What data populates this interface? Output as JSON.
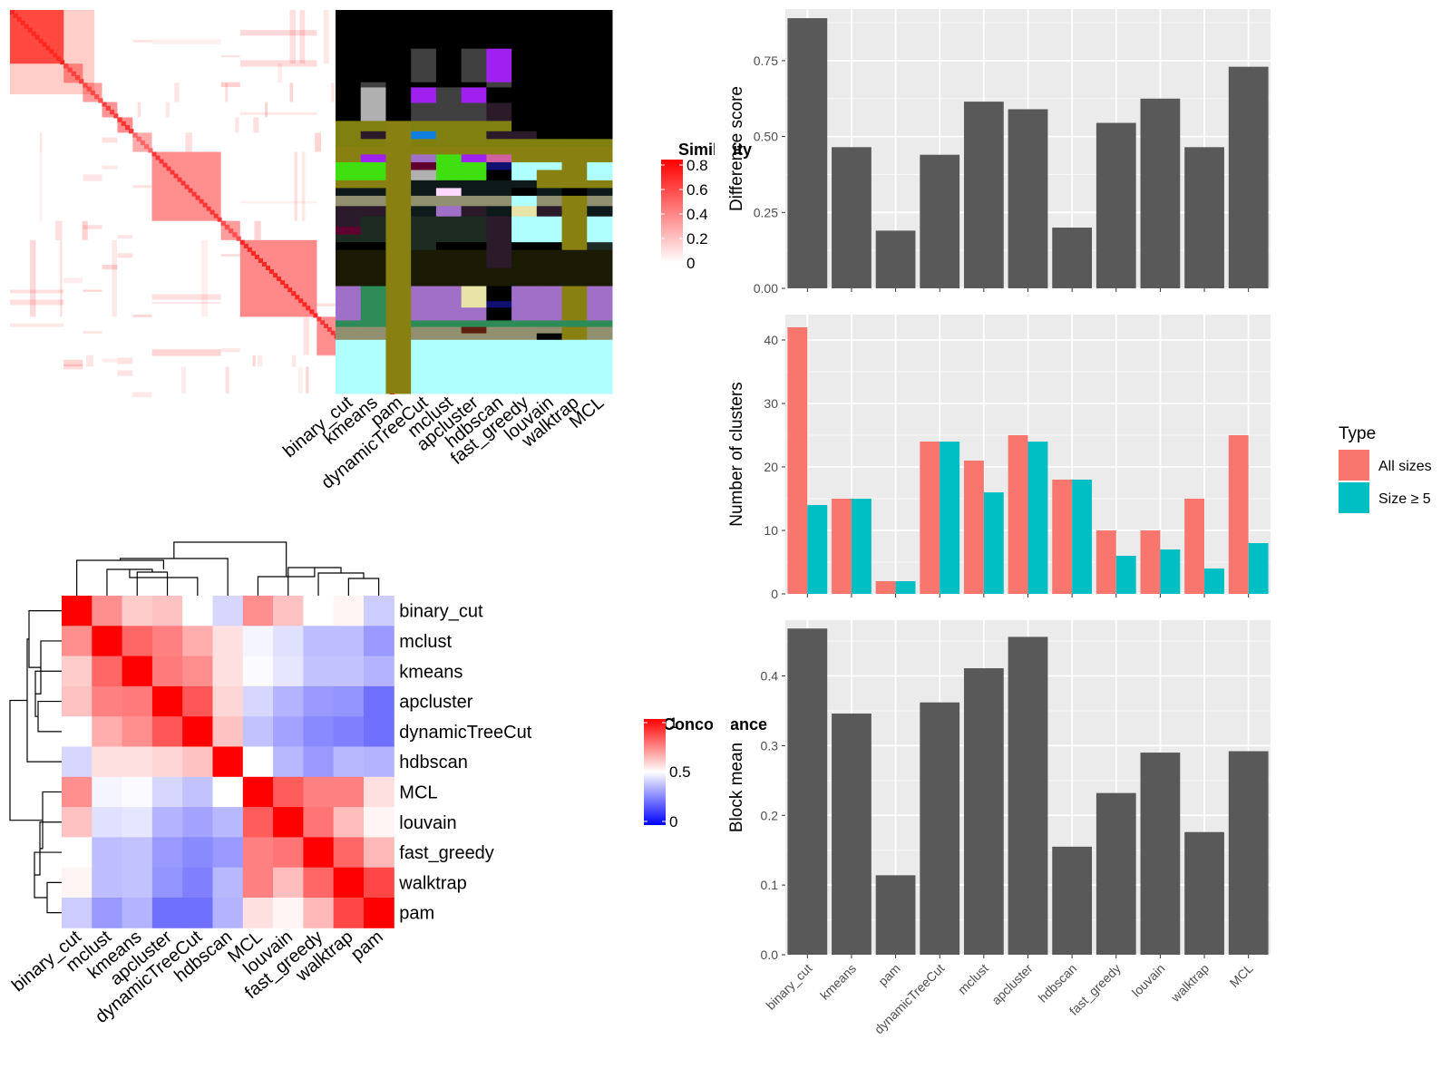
{
  "chart_data": [
    {
      "type": "heatmap",
      "panel": "similarity-matrix",
      "legend": {
        "title": "Similarity",
        "ticks": [
          "0",
          "0.2",
          "0.4",
          "0.6",
          "0.8"
        ],
        "colors": [
          "#ffffff",
          "#ff0000"
        ]
      },
      "diagonal_blocks": [
        {
          "start": 0.0,
          "end": 0.14,
          "strength": 0.85
        },
        {
          "start": 0.14,
          "end": 0.19,
          "strength": 0.75
        },
        {
          "start": 0.19,
          "end": 0.24,
          "strength": 0.7
        },
        {
          "start": 0.24,
          "end": 0.28,
          "strength": 0.75
        },
        {
          "start": 0.28,
          "end": 0.32,
          "strength": 0.8
        },
        {
          "start": 0.32,
          "end": 0.37,
          "strength": 0.6
        },
        {
          "start": 0.37,
          "end": 0.55,
          "strength": 0.8
        },
        {
          "start": 0.55,
          "end": 0.6,
          "strength": 0.7
        },
        {
          "start": 0.6,
          "end": 0.8,
          "strength": 0.85
        },
        {
          "start": 0.8,
          "end": 0.9,
          "strength": 0.8
        },
        {
          "start": 0.9,
          "end": 0.93,
          "strength": 0.8
        },
        {
          "start": 0.93,
          "end": 1.0,
          "strength": 1.0
        }
      ]
    },
    {
      "type": "heatmap",
      "panel": "cluster-assignments",
      "methods": [
        "binary_cut",
        "kmeans",
        "pam",
        "dynamicTreeCut",
        "mclust",
        "apcluster",
        "hdbscan",
        "fast_greedy",
        "louvain",
        "walktrap",
        "MCL"
      ],
      "palette": [
        "#000000",
        "#000000",
        "#808010",
        "#1e2b22",
        "#404040",
        "#2a1a2a",
        "#0e1a1a",
        "#b0ffff",
        "#a020f0",
        "#40e010",
        "#2e8b57",
        "#a070c8",
        "#e8e4a8",
        "#909070",
        "#888010",
        "#1a1a05",
        "#1080e0",
        "#600030",
        "#b0b0b0",
        "#ffd8ff",
        "#101070",
        "#d060a0",
        "#602010",
        "#2f4f4f"
      ],
      "bands": [
        {
          "start": 0.0,
          "end": 0.15,
          "cols": [
            0,
            0,
            0,
            0,
            0,
            0,
            0,
            0,
            0,
            0,
            0
          ]
        },
        {
          "start": 0.15,
          "end": 0.28,
          "cols": [
            0,
            0,
            0,
            4,
            0,
            4,
            8,
            0,
            0,
            0,
            0
          ]
        },
        {
          "start": 0.28,
          "end": 0.3,
          "cols": [
            0,
            4,
            0,
            0,
            0,
            0,
            4,
            0,
            0,
            0,
            0
          ]
        },
        {
          "start": 0.3,
          "end": 0.36,
          "cols": [
            0,
            18,
            0,
            8,
            4,
            8,
            0,
            0,
            0,
            0,
            0
          ]
        },
        {
          "start": 0.36,
          "end": 0.43,
          "cols": [
            0,
            18,
            0,
            4,
            4,
            4,
            5,
            0,
            0,
            0,
            0
          ]
        },
        {
          "start": 0.43,
          "end": 0.47,
          "cols": [
            2,
            2,
            14,
            2,
            2,
            2,
            2,
            0,
            0,
            0,
            0
          ]
        },
        {
          "start": 0.47,
          "end": 0.5,
          "cols": [
            2,
            5,
            14,
            16,
            2,
            2,
            5,
            5,
            0,
            0,
            0
          ]
        },
        {
          "start": 0.5,
          "end": 0.53,
          "cols": [
            2,
            2,
            14,
            2,
            2,
            2,
            2,
            2,
            2,
            2,
            2
          ]
        },
        {
          "start": 0.53,
          "end": 0.56,
          "cols": [
            14,
            14,
            14,
            14,
            14,
            14,
            14,
            14,
            14,
            14,
            14
          ]
        },
        {
          "start": 0.56,
          "end": 0.59,
          "cols": [
            14,
            8,
            14,
            11,
            9,
            8,
            21,
            14,
            14,
            14,
            14
          ]
        },
        {
          "start": 0.59,
          "end": 0.62,
          "cols": [
            9,
            9,
            14,
            17,
            9,
            9,
            20,
            7,
            7,
            14,
            7
          ]
        },
        {
          "start": 0.62,
          "end": 0.66,
          "cols": [
            9,
            9,
            14,
            18,
            9,
            9,
            0,
            7,
            14,
            14,
            7
          ]
        },
        {
          "start": 0.66,
          "end": 0.69,
          "cols": [
            14,
            14,
            14,
            6,
            6,
            6,
            6,
            6,
            14,
            14,
            14
          ]
        },
        {
          "start": 0.69,
          "end": 0.72,
          "cols": [
            6,
            6,
            14,
            6,
            19,
            6,
            6,
            0,
            6,
            0,
            6
          ]
        },
        {
          "start": 0.72,
          "end": 0.76,
          "cols": [
            13,
            13,
            14,
            13,
            13,
            13,
            13,
            7,
            13,
            14,
            13
          ]
        },
        {
          "start": 0.76,
          "end": 0.8,
          "cols": [
            5,
            5,
            14,
            6,
            11,
            5,
            6,
            12,
            5,
            14,
            6
          ]
        },
        {
          "start": 0.8,
          "end": 0.84,
          "cols": [
            5,
            3,
            14,
            3,
            3,
            3,
            5,
            7,
            7,
            14,
            7
          ]
        },
        {
          "start": 0.84,
          "end": 0.87,
          "cols": [
            17,
            3,
            14,
            3,
            3,
            3,
            5,
            7,
            7,
            14,
            7
          ]
        },
        {
          "start": 0.87,
          "end": 0.9,
          "cols": [
            3,
            3,
            14,
            3,
            3,
            3,
            5,
            7,
            7,
            14,
            7
          ]
        },
        {
          "start": 0.9,
          "end": 0.93,
          "cols": [
            0,
            0,
            14,
            3,
            0,
            0,
            5,
            0,
            0,
            14,
            3
          ]
        },
        {
          "start": 0.93,
          "end": 0.96,
          "cols": [
            15,
            15,
            14,
            15,
            15,
            15,
            5,
            15,
            15,
            15,
            15
          ]
        },
        {
          "start": 0.96,
          "end": 1.0,
          "cols": [
            15,
            15,
            14,
            15,
            15,
            15,
            5,
            15,
            15,
            15,
            15
          ]
        },
        {
          "start": 1.0,
          "end": 1.03,
          "cols": [
            15,
            15,
            14,
            15,
            15,
            15,
            15,
            15,
            15,
            15,
            15
          ]
        },
        {
          "start": 1.03,
          "end": 1.07,
          "cols": [
            15,
            15,
            14,
            15,
            15,
            15,
            15,
            15,
            15,
            15,
            15
          ]
        }
      ],
      "lower_bands": [
        {
          "start": 0.0,
          "end": 0.14,
          "cols": [
            11,
            10,
            14,
            11,
            11,
            12,
            0,
            11,
            11,
            14,
            11
          ]
        },
        {
          "start": 0.14,
          "end": 0.2,
          "cols": [
            11,
            10,
            14,
            11,
            11,
            12,
            20,
            11,
            11,
            14,
            11
          ]
        },
        {
          "start": 0.2,
          "end": 0.26,
          "cols": [
            11,
            10,
            14,
            11,
            11,
            11,
            0,
            11,
            11,
            14,
            11
          ]
        },
        {
          "start": 0.26,
          "end": 0.32,
          "cols": [
            11,
            10,
            14,
            11,
            11,
            11,
            0,
            11,
            11,
            14,
            11
          ]
        },
        {
          "start": 0.32,
          "end": 0.38,
          "cols": [
            10,
            10,
            14,
            10,
            10,
            10,
            10,
            10,
            10,
            10,
            10
          ]
        },
        {
          "start": 0.38,
          "end": 0.44,
          "cols": [
            13,
            13,
            14,
            13,
            13,
            22,
            13,
            13,
            13,
            14,
            13
          ]
        },
        {
          "start": 0.44,
          "end": 0.5,
          "cols": [
            13,
            13,
            14,
            13,
            13,
            13,
            13,
            13,
            0,
            14,
            13
          ]
        },
        {
          "start": 0.5,
          "end": 1.0,
          "cols": [
            7,
            7,
            14,
            7,
            7,
            7,
            7,
            7,
            7,
            7,
            7
          ]
        }
      ]
    },
    {
      "type": "heatmap",
      "panel": "concordance-matrix",
      "legend": {
        "title": "Concordance",
        "ticks": [
          "0",
          "0.5",
          "1"
        ],
        "colors": [
          "#0000ff",
          "#ffffff",
          "#ff0000"
        ]
      },
      "rows": [
        "binary_cut",
        "mclust",
        "kmeans",
        "apcluster",
        "dynamicTreeCut",
        "hdbscan",
        "MCL",
        "louvain",
        "fast_greedy",
        "walktrap",
        "pam"
      ],
      "columns": [
        "binary_cut",
        "mclust",
        "kmeans",
        "apcluster",
        "dynamicTreeCut",
        "hdbscan",
        "MCL",
        "louvain",
        "fast_greedy",
        "walktrap",
        "pam"
      ],
      "values": [
        [
          1.0,
          0.72,
          0.6,
          0.62,
          0.5,
          0.42,
          0.72,
          0.62,
          0.5,
          0.52,
          0.4
        ],
        [
          0.72,
          1.0,
          0.8,
          0.75,
          0.66,
          0.56,
          0.48,
          0.44,
          0.37,
          0.37,
          0.3
        ],
        [
          0.6,
          0.8,
          1.0,
          0.76,
          0.72,
          0.56,
          0.49,
          0.45,
          0.38,
          0.38,
          0.35
        ],
        [
          0.62,
          0.75,
          0.76,
          1.0,
          0.83,
          0.58,
          0.42,
          0.35,
          0.3,
          0.29,
          0.22
        ],
        [
          0.5,
          0.66,
          0.72,
          0.83,
          1.0,
          0.62,
          0.38,
          0.32,
          0.27,
          0.25,
          0.22
        ],
        [
          0.42,
          0.56,
          0.56,
          0.58,
          0.62,
          1.0,
          0.5,
          0.36,
          0.3,
          0.36,
          0.35
        ],
        [
          0.72,
          0.48,
          0.49,
          0.42,
          0.38,
          0.5,
          1.0,
          0.82,
          0.75,
          0.75,
          0.56
        ],
        [
          0.62,
          0.44,
          0.45,
          0.35,
          0.32,
          0.36,
          0.82,
          1.0,
          0.77,
          0.63,
          0.52
        ],
        [
          0.5,
          0.37,
          0.38,
          0.3,
          0.27,
          0.3,
          0.75,
          0.77,
          1.0,
          0.8,
          0.64
        ],
        [
          0.52,
          0.37,
          0.38,
          0.29,
          0.25,
          0.36,
          0.75,
          0.63,
          0.8,
          1.0,
          0.86
        ],
        [
          0.4,
          0.3,
          0.35,
          0.22,
          0.22,
          0.35,
          0.56,
          0.52,
          0.64,
          0.86,
          1.0
        ]
      ]
    },
    {
      "type": "bar",
      "panel": "difference-score",
      "categories": [
        "binary_cut",
        "kmeans",
        "pam",
        "dynamicTreeCut",
        "mclust",
        "apcluster",
        "hdbscan",
        "fast_greedy",
        "louvain",
        "walktrap",
        "MCL"
      ],
      "values": [
        0.89,
        0.465,
        0.19,
        0.44,
        0.615,
        0.59,
        0.2,
        0.545,
        0.625,
        0.465,
        0.73
      ],
      "ylabel": "Difference score",
      "ylim": [
        0,
        0.92
      ],
      "yticks": [
        "0.00",
        "0.25",
        "0.50",
        "0.75"
      ],
      "grid": true
    },
    {
      "type": "bar",
      "panel": "number-of-clusters",
      "categories": [
        "binary_cut",
        "kmeans",
        "pam",
        "dynamicTreeCut",
        "mclust",
        "apcluster",
        "hdbscan",
        "fast_greedy",
        "louvain",
        "walktrap",
        "MCL"
      ],
      "series": [
        {
          "name": "All sizes",
          "values": [
            42,
            15,
            2,
            24,
            21,
            25,
            18,
            10,
            10,
            15,
            25
          ]
        },
        {
          "name": "Size ≥ 5",
          "values": [
            14,
            15,
            2,
            24,
            16,
            24,
            18,
            6,
            7,
            4,
            8
          ]
        }
      ],
      "ylabel": "Number of clusters",
      "ylim": [
        0,
        44
      ],
      "yticks": [
        "0",
        "10",
        "20",
        "30",
        "40"
      ],
      "legend": {
        "title": "Type",
        "position": "right"
      },
      "colors": [
        "#f8766d",
        "#00bfc4"
      ],
      "grid": true
    },
    {
      "type": "bar",
      "panel": "block-mean",
      "categories": [
        "binary_cut",
        "kmeans",
        "pam",
        "dynamicTreeCut",
        "mclust",
        "apcluster",
        "hdbscan",
        "fast_greedy",
        "louvain",
        "walktrap",
        "MCL"
      ],
      "values": [
        0.468,
        0.346,
        0.114,
        0.362,
        0.411,
        0.456,
        0.155,
        0.232,
        0.29,
        0.176,
        0.292
      ],
      "ylabel": "Block mean",
      "ylim": [
        0,
        0.48
      ],
      "yticks": [
        "0.0",
        "0.1",
        "0.2",
        "0.3",
        "0.4"
      ],
      "grid": true
    }
  ]
}
